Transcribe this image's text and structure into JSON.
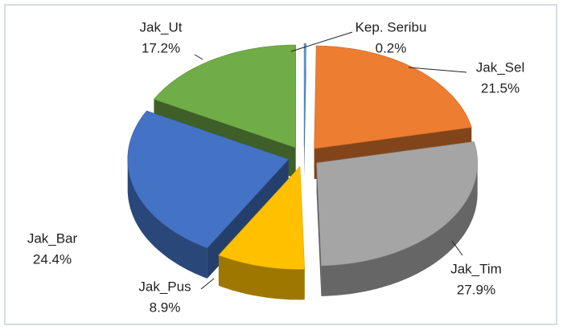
{
  "chart_data": {
    "type": "pie",
    "categories": [
      "Kep. Seribu",
      "Jak_Sel",
      "Jak_Tim",
      "Jak_Pus",
      "Jak_Bar",
      "Jak_Ut"
    ],
    "values": [
      0.2,
      21.5,
      27.9,
      8.9,
      24.4,
      17.2
    ],
    "value_labels": [
      "0.2%",
      "21.5%",
      "27.9%",
      "8.9%",
      "24.4%",
      "17.2%"
    ],
    "colors": [
      "#5b9bd5",
      "#ed7d31",
      "#a5a5a5",
      "#ffc000",
      "#4472c4",
      "#70ad47"
    ],
    "three_d": true,
    "exploded": true
  }
}
